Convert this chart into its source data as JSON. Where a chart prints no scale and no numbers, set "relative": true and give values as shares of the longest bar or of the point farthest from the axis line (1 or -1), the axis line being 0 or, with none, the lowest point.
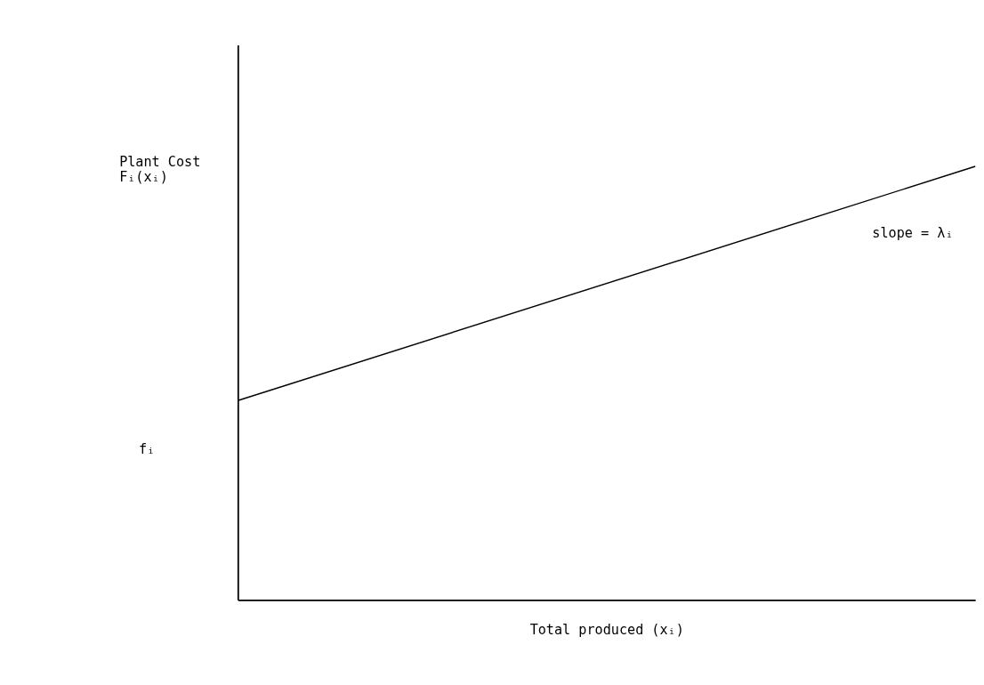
{
  "chart_data": {
    "type": "line",
    "relative": true,
    "categories": [
      null,
      null
    ],
    "series": [
      {
        "color": "#000000",
        "values": [
          0.46,
          1
        ]
      }
    ],
    "xlabel": "Total produced (xᵢ)",
    "ylabel": "Plant Cost\nFᵢ(xᵢ)",
    "annotations": [
      "slope = λᵢ",
      "fᵢ"
    ],
    "grid": false,
    "legend": false
  }
}
